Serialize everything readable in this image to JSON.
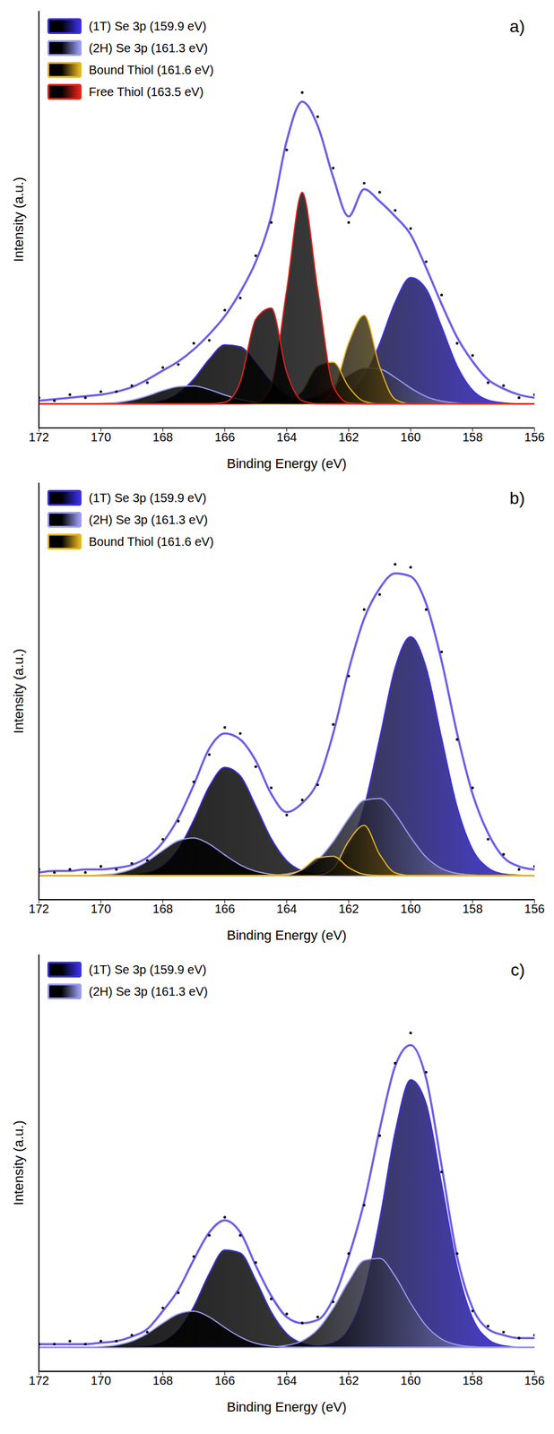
{
  "chart_data": [
    {
      "type": "line",
      "title": "a)",
      "x_label": "Binding Energy (eV)",
      "y_label": "Intensity (a.u.)",
      "xlim": [
        172,
        156
      ],
      "xticks": [
        172,
        170,
        168,
        166,
        164,
        162,
        160,
        158,
        156
      ],
      "ylim": [
        -8,
        130
      ],
      "tick_labels": "x",
      "legend": "upper left",
      "x": [
        156,
        156.5,
        157,
        157.5,
        158,
        158.5,
        159,
        159.5,
        160,
        160.5,
        161,
        161.5,
        162,
        162.5,
        163,
        163.5,
        164,
        164.5,
        165,
        165.5,
        166,
        166.5,
        167,
        167.5,
        168,
        168.5,
        169,
        169.5,
        170,
        170.5,
        171,
        171.5,
        172
      ],
      "series": [
        {
          "name": "(1T) Se 3p (159.9 eV)",
          "type": "area",
          "color": "#3b30e6",
          "values": [
            0,
            0,
            0.3,
            1.2,
            4.5,
            12.5,
            25.5,
            38,
            41.8,
            33.6,
            19.9,
            8.7,
            2.8,
            0.6,
            0.1,
            0,
            0,
            0,
            0,
            0,
            0,
            0,
            0,
            0,
            0,
            0,
            0,
            0,
            0,
            0,
            0,
            0,
            0
          ]
        },
        {
          "name": "(1T) Se 3p (159.9 eV)",
          "type": "area",
          "color": "#3b30e6",
          "values": [
            0,
            0,
            0,
            0,
            0,
            0,
            0,
            0,
            0,
            0,
            0,
            0,
            0,
            0,
            0.2,
            0.8,
            2.7,
            7.1,
            13.5,
            18.9,
            19.5,
            14.8,
            8.2,
            3.4,
            1.0,
            0.2,
            0,
            0,
            0,
            0,
            0,
            0,
            0
          ]
        },
        {
          "name": "(2H) Se 3p (161.3 eV)",
          "type": "area",
          "color": "#9a9cf2",
          "values": [
            0,
            0,
            0,
            0,
            0,
            0.2,
            0.9,
            2.4,
            5.2,
            8.7,
            11.5,
            11.8,
            9.4,
            5.8,
            2.8,
            1.1,
            0.3,
            0.1,
            0,
            0,
            0,
            0,
            0,
            0,
            0,
            0,
            0,
            0,
            0,
            0,
            0,
            0,
            0
          ]
        },
        {
          "name": "(2H) Se 3p (161.3 eV)",
          "type": "area",
          "color": "#9a9cf2",
          "values": [
            0,
            0,
            0,
            0,
            0,
            0,
            0,
            0,
            0,
            0,
            0,
            0,
            0,
            0,
            0,
            0,
            0,
            0.2,
            0.5,
            1.4,
            2.9,
            4.7,
            5.9,
            5.7,
            4.4,
            2.6,
            1.2,
            0.4,
            0.1,
            0,
            0,
            0,
            0
          ]
        },
        {
          "name": "Bound Thiol (161.6 eV)",
          "type": "area",
          "color": "#e6b422",
          "values": [
            0,
            0,
            0,
            0,
            0,
            0,
            0,
            0,
            0,
            1.5,
            12.3,
            29.3,
            20.2,
            4.1,
            0.2,
            0,
            0,
            0,
            0,
            0,
            0,
            0,
            0,
            0,
            0,
            0,
            0,
            0,
            0,
            0,
            0,
            0,
            0
          ]
        },
        {
          "name": "Bound Thiol (161.6 eV)",
          "type": "area",
          "color": "#e6b422",
          "values": [
            0,
            0,
            0,
            0,
            0,
            0,
            0,
            0,
            0,
            0,
            0,
            0.8,
            5.6,
            13.8,
            12.5,
            4.2,
            0.5,
            0,
            0,
            0,
            0,
            0,
            0,
            0,
            0,
            0,
            0,
            0,
            0,
            0,
            0,
            0,
            0
          ]
        },
        {
          "name": "Free Thiol (163.5 eV)",
          "type": "area",
          "color": "#e3241b",
          "values": [
            0,
            0,
            0,
            0,
            0,
            0,
            0,
            0,
            0,
            0,
            0,
            0,
            0.3,
            5.9,
            37.8,
            70,
            37.8,
            5.9,
            0.3,
            0,
            0,
            0,
            0,
            0,
            0,
            0,
            0,
            0,
            0,
            0,
            0,
            0,
            0
          ]
        },
        {
          "name": "Free Thiol (163.5 eV)",
          "type": "area",
          "color": "#e3241b",
          "values": [
            0,
            0,
            0,
            0,
            0,
            0,
            0,
            0,
            0,
            0,
            0,
            0,
            0,
            0,
            0,
            1,
            10.4,
            31.7,
            28,
            7.2,
            0.5,
            0,
            0,
            0,
            0,
            0,
            0,
            0,
            0,
            0,
            0,
            0,
            0
          ]
        },
        {
          "type": "line",
          "color": "#6b5ee8",
          "values": [
            2,
            3,
            5,
            8,
            14,
            22,
            33,
            45,
            56,
            62,
            67,
            71,
            62,
            75,
            92,
            100,
            87,
            62,
            47,
            37,
            29,
            23,
            18,
            14,
            11,
            8,
            5.5,
            4,
            3,
            2.5,
            2,
            1.5,
            1
          ]
        },
        {
          "type": "scatter",
          "marker": "circle",
          "color": "#000000",
          "values": [
            3,
            2,
            6,
            7,
            16,
            20,
            36,
            47,
            58,
            64,
            70,
            73,
            60,
            78,
            95,
            103,
            84,
            60,
            49,
            35,
            31,
            21,
            20,
            13,
            12,
            7,
            6,
            4,
            4,
            2,
            3,
            1,
            2
          ]
        }
      ]
    },
    {
      "type": "line",
      "title": "b)",
      "x_label": "Binding Energy (eV)",
      "y_label": "Intensity (a.u.)",
      "xlim": [
        172,
        156
      ],
      "xticks": [
        172,
        170,
        168,
        166,
        164,
        162,
        160,
        158,
        156
      ],
      "ylim": [
        -8,
        130
      ],
      "tick_labels": "x",
      "legend": "upper left",
      "x": [
        156,
        156.5,
        157,
        157.5,
        158,
        158.5,
        159,
        159.5,
        160,
        160.5,
        161,
        161.5,
        162,
        162.5,
        163,
        163.5,
        164,
        164.5,
        165,
        165.5,
        166,
        166.5,
        167,
        167.5,
        168,
        168.5,
        169,
        169.5,
        170,
        170.5,
        171,
        171.5,
        172
      ],
      "series": [
        {
          "name": "(1T) Se 3p (159.9 eV)",
          "type": "area",
          "color": "#3b30e6",
          "values": [
            0,
            0.1,
            0.5,
            2.5,
            8.6,
            22.7,
            45.4,
            68.8,
            79,
            68.8,
            45.4,
            22.7,
            8.6,
            2.5,
            0.5,
            0.1,
            0,
            0,
            0,
            0,
            0,
            0,
            0,
            0,
            0,
            0,
            0,
            0,
            0,
            0,
            0,
            0,
            0
          ]
        },
        {
          "name": "(1T) Se 3p (159.9 eV)",
          "type": "area",
          "color": "#3b30e6",
          "values": [
            0,
            0,
            0,
            0,
            0,
            0,
            0,
            0,
            0,
            0,
            0,
            0,
            0,
            0,
            0.3,
            1.5,
            4.9,
            12.2,
            23,
            33,
            35.8,
            29.5,
            18.4,
            8.7,
            3.1,
            0.8,
            0.2,
            0,
            0,
            0,
            0,
            0,
            0
          ]
        },
        {
          "name": "(2H) Se 3p (161.3 eV)",
          "type": "area",
          "color": "#9a9cf2",
          "values": [
            0,
            0,
            0,
            0,
            0.2,
            0.7,
            2.3,
            6.1,
            12.7,
            20.4,
            25.5,
            24.9,
            18.9,
            11.2,
            5.1,
            1.8,
            0.5,
            0.1,
            0,
            0,
            0,
            0,
            0,
            0,
            0,
            0,
            0,
            0,
            0,
            0,
            0,
            0,
            0
          ]
        },
        {
          "name": "(2H) Se 3p (161.3 eV)",
          "type": "area",
          "color": "#9a9cf2",
          "values": [
            0,
            0,
            0,
            0,
            0,
            0,
            0,
            0,
            0,
            0,
            0,
            0,
            0,
            0,
            0,
            0,
            0,
            0.4,
            1.4,
            3.5,
            6.8,
            10.4,
            12.4,
            11.5,
            8.3,
            4.7,
            2.1,
            0.7,
            0.2,
            0,
            0,
            0,
            0
          ]
        },
        {
          "name": "Bound Thiol (161.6 eV)",
          "type": "area",
          "color": "#e6b422",
          "values": [
            0,
            0,
            0,
            0,
            0,
            0,
            0,
            0,
            0,
            0.9,
            7,
            16.6,
            11.4,
            2.3,
            0.1,
            0,
            0,
            0,
            0,
            0,
            0,
            0,
            0,
            0,
            0,
            0,
            0,
            0,
            0,
            0,
            0,
            0,
            0
          ]
        },
        {
          "name": "Bound Thiol (161.6 eV)",
          "type": "area",
          "color": "#e6b422",
          "values": [
            0,
            0,
            0,
            0,
            0,
            0,
            0,
            0,
            0,
            0,
            0,
            0.4,
            2.6,
            6.4,
            5.8,
            2,
            0.2,
            0,
            0,
            0,
            0,
            0,
            0,
            0,
            0,
            0,
            0,
            0,
            0,
            0,
            0,
            0,
            0
          ]
        },
        {
          "type": "line",
          "color": "#6b5ee8",
          "values": [
            2,
            3,
            6,
            14,
            27,
            47,
            71,
            90,
            99,
            100,
            95,
            85,
            68,
            47,
            31,
            24,
            21,
            27,
            38,
            45,
            47,
            42,
            30,
            19,
            11,
            6,
            3.5,
            2.5,
            2,
            2,
            1.5,
            1.5,
            1
          ]
        },
        {
          "type": "scatter",
          "marker": "circle",
          "color": "#000000",
          "values": [
            3,
            2,
            7,
            12,
            29,
            45,
            74,
            88,
            102,
            103,
            93,
            88,
            66,
            50,
            30,
            25,
            20,
            29,
            36,
            47,
            49,
            40,
            31,
            18,
            12,
            5,
            4,
            2,
            3,
            1,
            2,
            1,
            2
          ]
        }
      ]
    },
    {
      "type": "line",
      "title": "c)",
      "x_label": "Binding Energy (eV)",
      "y_label": "Intensity (a.u.)",
      "xlim": [
        172,
        156
      ],
      "xticks": [
        172,
        170,
        168,
        166,
        164,
        162,
        160,
        158,
        156
      ],
      "ylim": [
        -8,
        130
      ],
      "tick_labels": "x",
      "legend": "upper left",
      "x": [
        156,
        156.5,
        157,
        157.5,
        158,
        158.5,
        159,
        159.5,
        160,
        160.5,
        161,
        161.5,
        162,
        162.5,
        163,
        163.5,
        164,
        164.5,
        165,
        165.5,
        166,
        166.5,
        167,
        167.5,
        168,
        168.5,
        169,
        169.5,
        170,
        170.5,
        171,
        171.5,
        172
      ],
      "series": [
        {
          "name": "(1T) Se 3p (159.9 eV)",
          "type": "area",
          "color": "#3b30e6",
          "values": [
            0,
            0,
            0.5,
            2.6,
            9.6,
            26.5,
            54,
            80.6,
            88.5,
            71.2,
            42.2,
            18.3,
            5.9,
            1.3,
            0.3,
            0,
            0,
            0,
            0,
            0,
            0,
            0,
            0,
            0,
            0,
            0,
            0,
            0,
            0,
            0,
            0,
            0,
            0
          ]
        },
        {
          "name": "(1T) Se 3p (159.9 eV)",
          "type": "area",
          "color": "#3b30e6",
          "values": [
            0,
            0,
            0,
            0,
            0,
            0,
            0,
            0,
            0,
            0,
            0,
            0,
            0,
            0,
            0.3,
            1.3,
            4.5,
            11.7,
            22.3,
            31.2,
            32.2,
            24.4,
            13.5,
            5.6,
            1.7,
            0.3,
            0,
            0,
            0,
            0,
            0,
            0,
            0
          ]
        },
        {
          "name": "(2H) Se 3p (161.3 eV)",
          "type": "area",
          "color": "#9a9cf2",
          "values": [
            0,
            0,
            0,
            0,
            0.2,
            0.8,
            2.7,
            7.1,
            14.6,
            23.5,
            29.4,
            28.7,
            21.8,
            12.9,
            5.9,
            2.1,
            0.6,
            0.1,
            0,
            0,
            0,
            0,
            0,
            0,
            0,
            0,
            0,
            0,
            0,
            0,
            0,
            0,
            0
          ]
        },
        {
          "name": "(2H) Se 3p (161.3 eV)",
          "type": "area",
          "color": "#9a9cf2",
          "values": [
            0,
            0,
            0,
            0,
            0,
            0,
            0,
            0,
            0,
            0,
            0,
            0,
            0,
            0,
            0,
            0,
            0,
            0.4,
            1.3,
            3.4,
            6.5,
            10,
            11.9,
            11,
            8,
            4.5,
            2,
            0.7,
            0.2,
            0,
            0,
            0,
            0
          ]
        },
        {
          "type": "line",
          "color": "#6b5ee8",
          "values": [
            3,
            3,
            4,
            6,
            13,
            30,
            60,
            89,
            100,
            93,
            72,
            48,
            30,
            16,
            9,
            8,
            10,
            17,
            27,
            38,
            42,
            38,
            29,
            19,
            12,
            6,
            3.5,
            2,
            1.5,
            1,
            1,
            1,
            1
          ]
        },
        {
          "type": "scatter",
          "marker": "circle",
          "color": "#000000",
          "values": [
            4,
            3,
            5,
            7,
            12,
            31,
            58,
            91,
            104,
            94,
            70,
            47,
            31,
            15,
            10,
            8,
            11,
            16,
            28,
            37,
            43,
            37,
            30,
            18,
            13,
            5,
            4,
            2,
            2,
            1,
            2,
            1,
            1
          ]
        }
      ]
    }
  ]
}
